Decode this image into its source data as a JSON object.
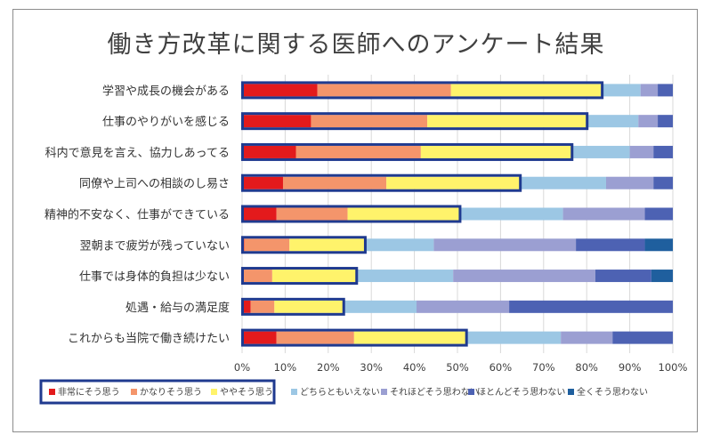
{
  "chart_data": {
    "type": "bar",
    "orientation": "horizontal",
    "stacked": "percent",
    "title": "働き方改革に関する医師へのアンケート結果",
    "categories": [
      "学習や成長の機会がある",
      "仕事のやりがいを感じる",
      "科内で意見を言え、協力しあってる",
      "同僚や上司への相談のし易さ",
      "精神的不安なく、仕事ができている",
      "翌朝まで疲労が残っていない",
      "仕事では身体的負担は少ない",
      "処遇・給与の満足度",
      "これからも当院で働き続けたい"
    ],
    "series": [
      {
        "name": "非常にそう思う",
        "color": "#e31a1c",
        "values": [
          17.5,
          16,
          12.5,
          9.5,
          8,
          0.5,
          0,
          2,
          8
        ]
      },
      {
        "name": "かなりそう思う",
        "color": "#f4956b",
        "values": [
          31,
          27,
          29,
          24,
          16.5,
          10.5,
          7,
          5.5,
          18
        ]
      },
      {
        "name": "ややそう思う",
        "color": "#fff36b",
        "values": [
          35,
          37,
          35,
          31,
          26,
          17.5,
          19.5,
          16,
          26
        ]
      },
      {
        "name": "どちらともいえない",
        "color": "#9cc7e4",
        "values": [
          9,
          12,
          13.5,
          20,
          24,
          16,
          22.5,
          17,
          22
        ]
      },
      {
        "name": "それほどそう思わない",
        "color": "#9b9fd2",
        "values": [
          4,
          4.5,
          5.5,
          11,
          19,
          33,
          33,
          21.5,
          12
        ]
      },
      {
        "name": "ほとんどそう思わない",
        "color": "#4d62b3",
        "values": [
          3.5,
          3.5,
          4.5,
          4.5,
          6.5,
          16,
          13,
          38,
          14
        ]
      },
      {
        "name": "全くそう思わない",
        "color": "#1f5f9e",
        "values": [
          0,
          0,
          0,
          0,
          0,
          6.5,
          5,
          0,
          0
        ]
      }
    ],
    "highlight_series_count": 3,
    "highlight_color": "#1f3a8f",
    "xlim": [
      0,
      100
    ],
    "xticks": [
      "0%",
      "10%",
      "20%",
      "30%",
      "40%",
      "50%",
      "60%",
      "70%",
      "80%",
      "90%",
      "100%"
    ],
    "grid": true,
    "legend_position": "bottom"
  }
}
